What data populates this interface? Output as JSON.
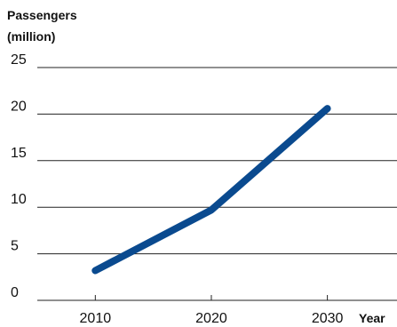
{
  "chart_data": {
    "type": "line",
    "ylabel": [
      "Passengers",
      "(million)"
    ],
    "xlabel": "Year",
    "ylim": [
      0,
      25
    ],
    "yticks": [
      0,
      5,
      10,
      15,
      20,
      25
    ],
    "xticks": [
      2010,
      2020,
      2030
    ],
    "xlim": [
      2005,
      2036
    ],
    "grid": true,
    "series": [
      {
        "color": "#0a4a8f",
        "x": [
          2010,
          2020,
          2030
        ],
        "y": [
          3.2,
          9.7,
          20.6
        ]
      }
    ]
  }
}
